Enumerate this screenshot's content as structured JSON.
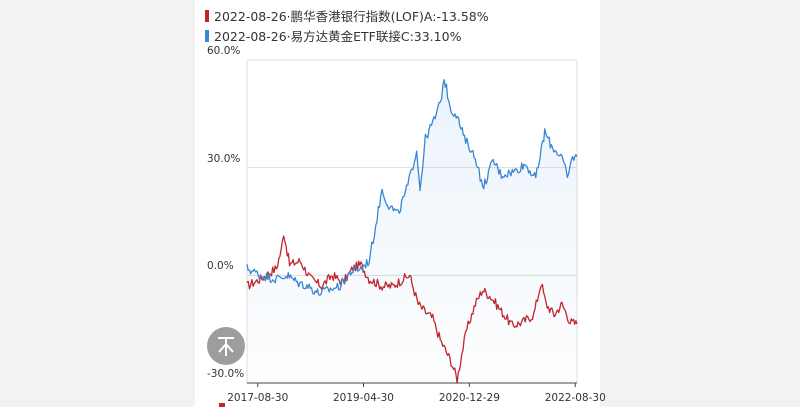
{
  "colors": {
    "series0": "#c0262c",
    "series1": "#3a86d4",
    "grid": "#dddddd"
  },
  "icons": {
    "back_to_top": "back-to-top-icon"
  },
  "chart_data": {
    "type": "line",
    "x_range": [
      "2017-06-29",
      "2022-09-09"
    ],
    "ylim": [
      -30,
      60
    ],
    "y_ticks": [
      {
        "v": 60,
        "label": "60.0%"
      },
      {
        "v": 30,
        "label": "30.0%"
      },
      {
        "v": 0,
        "label": "0.0%"
      },
      {
        "v": -30,
        "label": "-30.0%"
      }
    ],
    "x_ticks": [
      {
        "d": "2017-08-30",
        "label": "2017-08-30"
      },
      {
        "d": "2019-04-30",
        "label": "2019-04-30"
      },
      {
        "d": "2020-12-29",
        "label": "2020-12-29"
      },
      {
        "d": "2022-08-30",
        "label": "2022-08-30"
      }
    ],
    "grid": true,
    "legend": "top-left",
    "series": [
      {
        "name": "2022-08-26·鹏华香港银行指数(LOF)A:-13.58%",
        "color": "#c0262c",
        "points": [
          [
            "2017-06-29",
            -3
          ],
          [
            "2017-09-15",
            -1
          ],
          [
            "2017-12-15",
            2
          ],
          [
            "2018-01-12",
            7
          ],
          [
            "2018-01-26",
            12
          ],
          [
            "2018-03-01",
            3
          ],
          [
            "2018-05-01",
            4
          ],
          [
            "2018-07-01",
            -1
          ],
          [
            "2018-09-01",
            -3
          ],
          [
            "2018-11-01",
            0
          ],
          [
            "2019-01-02",
            -2
          ],
          [
            "2019-03-01",
            2
          ],
          [
            "2019-04-15",
            3
          ],
          [
            "2019-06-01",
            -1
          ],
          [
            "2019-08-15",
            -3
          ],
          [
            "2019-10-15",
            -3
          ],
          [
            "2019-12-15",
            -1
          ],
          [
            "2020-01-20",
            0
          ],
          [
            "2020-03-10",
            -8
          ],
          [
            "2020-04-15",
            -10
          ],
          [
            "2020-06-01",
            -12
          ],
          [
            "2020-07-15",
            -18
          ],
          [
            "2020-09-15",
            -24
          ],
          [
            "2020-10-20",
            -29
          ],
          [
            "2020-11-15",
            -22
          ],
          [
            "2020-12-15",
            -15
          ],
          [
            "2021-02-01",
            -8
          ],
          [
            "2021-03-15",
            -4
          ],
          [
            "2021-05-01",
            -6
          ],
          [
            "2021-07-01",
            -10
          ],
          [
            "2021-09-01",
            -14
          ],
          [
            "2021-11-01",
            -13
          ],
          [
            "2022-01-03",
            -11
          ],
          [
            "2022-02-15",
            -2
          ],
          [
            "2022-03-15",
            -8
          ],
          [
            "2022-05-01",
            -11
          ],
          [
            "2022-06-15",
            -8
          ],
          [
            "2022-08-01",
            -13
          ],
          [
            "2022-09-09",
            -13.58
          ]
        ]
      },
      {
        "name": "2022-08-26·易方达黄金ETF联接C:33.10%",
        "color": "#3a86d4",
        "points": [
          [
            "2017-06-29",
            2
          ],
          [
            "2017-09-15",
            0
          ],
          [
            "2017-12-15",
            -1
          ],
          [
            "2018-02-15",
            0
          ],
          [
            "2018-04-15",
            -2
          ],
          [
            "2018-06-15",
            -3
          ],
          [
            "2018-08-15",
            -5
          ],
          [
            "2018-10-15",
            -4
          ],
          [
            "2018-12-15",
            -3
          ],
          [
            "2019-02-15",
            1
          ],
          [
            "2019-04-15",
            2
          ],
          [
            "2019-06-01",
            4
          ],
          [
            "2019-06-25",
            10
          ],
          [
            "2019-08-15",
            24
          ],
          [
            "2019-09-15",
            20
          ],
          [
            "2019-11-15",
            17
          ],
          [
            "2020-01-10",
            25
          ],
          [
            "2020-03-01",
            35
          ],
          [
            "2020-03-20",
            24
          ],
          [
            "2020-04-20",
            38
          ],
          [
            "2020-06-15",
            44
          ],
          [
            "2020-07-15",
            48
          ],
          [
            "2020-08-06",
            55
          ],
          [
            "2020-09-15",
            46
          ],
          [
            "2020-10-15",
            45
          ],
          [
            "2020-12-01",
            38
          ],
          [
            "2020-12-29",
            36
          ],
          [
            "2021-02-15",
            31
          ],
          [
            "2021-03-15",
            24
          ],
          [
            "2021-05-15",
            32
          ],
          [
            "2021-07-01",
            28
          ],
          [
            "2021-09-15",
            29
          ],
          [
            "2021-11-15",
            31
          ],
          [
            "2022-01-15",
            27
          ],
          [
            "2022-03-08",
            40
          ],
          [
            "2022-04-15",
            36
          ],
          [
            "2022-06-15",
            33
          ],
          [
            "2022-07-15",
            27
          ],
          [
            "2022-08-15",
            33
          ],
          [
            "2022-09-09",
            33.1
          ]
        ]
      }
    ]
  }
}
